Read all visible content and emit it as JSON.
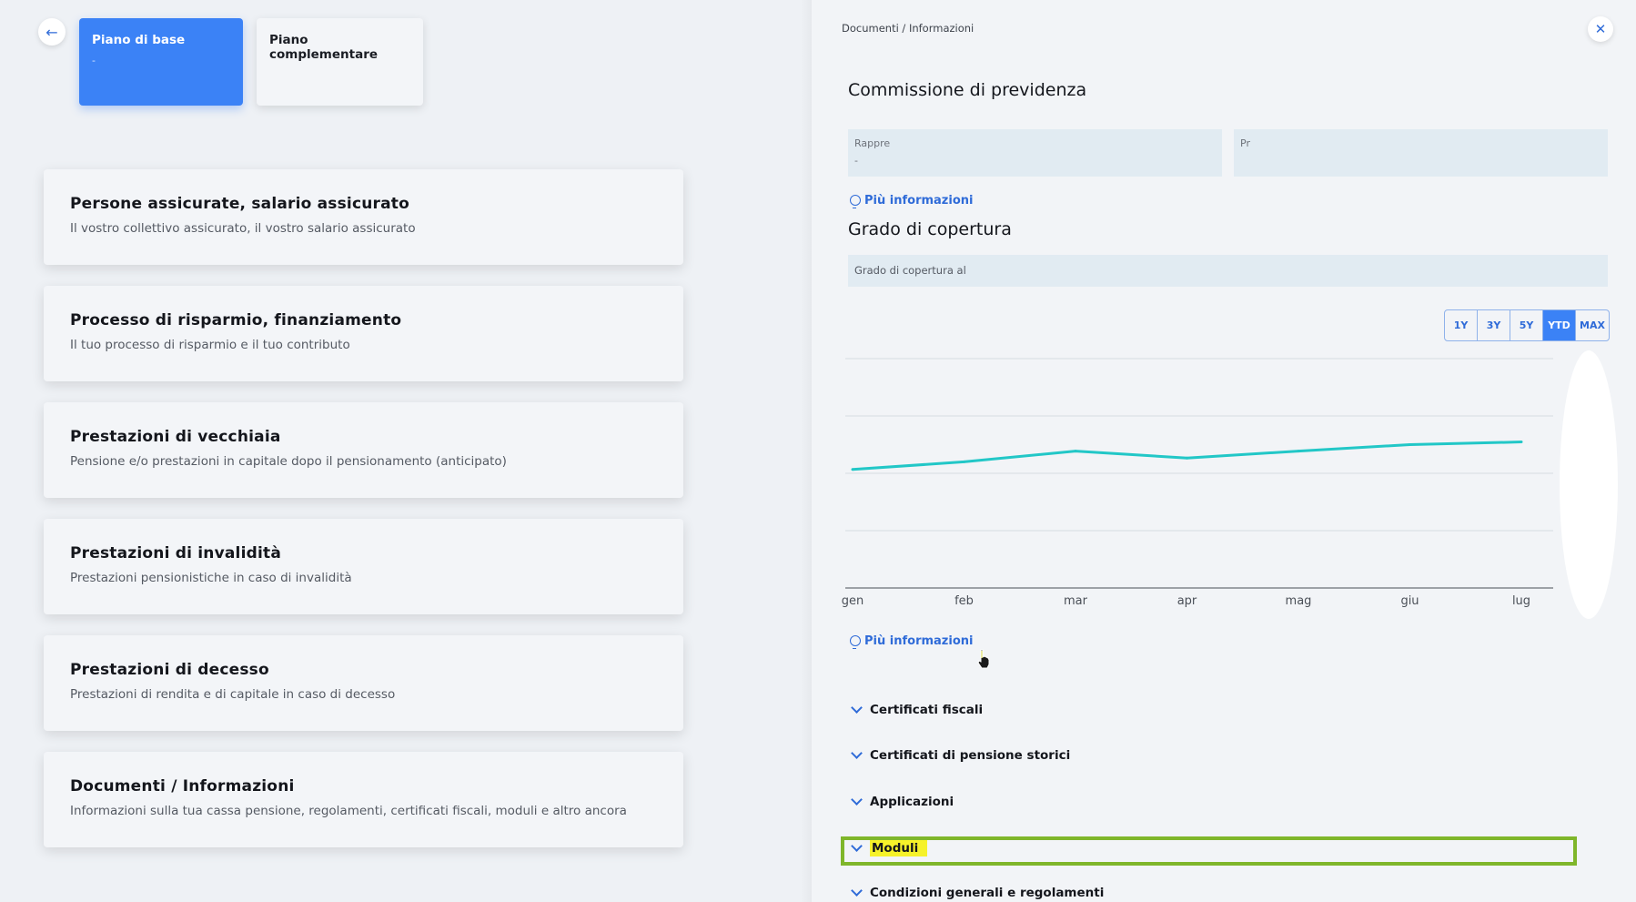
{
  "plans": {
    "active": {
      "label": "Piano di base",
      "sub": "-"
    },
    "inactive": {
      "label": "Piano complementare"
    }
  },
  "cards": [
    {
      "title": "Persone assicurate, salario assicurato",
      "desc": "Il vostro collettivo assicurato, il vostro salario assicurato"
    },
    {
      "title": "Processo di risparmio, finanziamento",
      "desc": "Il tuo processo di risparmio e il tuo contributo"
    },
    {
      "title": "Prestazioni di vecchiaia",
      "desc": "Pensione e/o prestazioni in capitale dopo il pensionamento (anticipato)"
    },
    {
      "title": "Prestazioni di invalidità",
      "desc": "Prestazioni pensionistiche in caso di invalidità"
    },
    {
      "title": "Prestazioni di decesso",
      "desc": "Prestazioni di rendita e di capitale in caso di decesso"
    },
    {
      "title": "Documenti / Informazioni",
      "desc": "Informazioni sulla tua cassa pensione, regolamenti, certificati fiscali, moduli e altro ancora"
    }
  ],
  "panel": {
    "breadcrumb": "Documenti / Informazioni",
    "commission_title": "Commissione di previdenza",
    "box_left_label": "Rappre",
    "box_left_value": "-",
    "box_right_label": "Pr",
    "more_info": "Più informazioni",
    "coverage_title": "Grado di copertura",
    "coverage_label": "Grado di copertura al",
    "ranges": [
      "1Y",
      "3Y",
      "5Y",
      "YTD",
      "MAX"
    ],
    "active_range": "YTD",
    "accordion": [
      "Certificati fiscali",
      "Certificati di pensione storici",
      "Applicazioni",
      "Moduli",
      "Condizioni generali e regolamenti"
    ],
    "highlighted": "Moduli"
  },
  "icons": {
    "back": "arrow-left-icon",
    "close": "close-icon",
    "info": "lightbulb-icon",
    "chevron": "chevron-down-icon",
    "cursor": "hand-pointer-icon"
  },
  "colors": {
    "accent": "#3b82f6",
    "line": "#22c7c7",
    "highlight": "#f6f22a",
    "frame": "#7fb62a"
  },
  "chart_data": {
    "type": "line",
    "categories": [
      "gen",
      "feb",
      "mar",
      "apr",
      "mag",
      "giu",
      "lug"
    ],
    "series": [
      {
        "values": [
          0.1,
          0.3,
          0.58,
          0.4,
          0.58,
          0.75,
          0.82
        ]
      }
    ],
    "ylim": [
      -3,
      3
    ],
    "grid": true,
    "note_values": "relative trend values, y axis labels not visible"
  }
}
